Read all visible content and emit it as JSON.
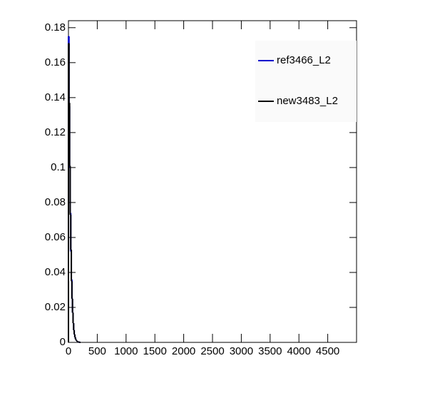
{
  "chart_data": {
    "type": "histogram",
    "bins": [
      0,
      10,
      20,
      30,
      40,
      50,
      60,
      70,
      80,
      90,
      100,
      110,
      120,
      130,
      140,
      150,
      160,
      170,
      180,
      190,
      200,
      210
    ],
    "series": [
      {
        "name": "ref3466_L2",
        "color": "#0000cc",
        "values": [
          0.175,
          0.135,
          0.1,
          0.074,
          0.052,
          0.036,
          0.025,
          0.017,
          0.011,
          0.007,
          0.0045,
          0.003,
          0.002,
          0.0012,
          0.0008,
          0.0005,
          0.0003,
          0.0002,
          0.0001,
          0.0001,
          0
        ]
      },
      {
        "name": "new3483_L2",
        "color": "#000000",
        "values": [
          0.171,
          0.137,
          0.101,
          0.073,
          0.053,
          0.035,
          0.025,
          0.017,
          0.011,
          0.007,
          0.0046,
          0.003,
          0.0019,
          0.0012,
          0.0008,
          0.0005,
          0.0003,
          0.0002,
          0.0001,
          0.0001,
          0
        ]
      }
    ],
    "xlim": [
      0,
      5000
    ],
    "xticks": [
      0,
      500,
      1000,
      1500,
      2000,
      2500,
      3000,
      3500,
      4000,
      4500
    ],
    "ylim": [
      0,
      0.184
    ],
    "yticks": [
      0,
      0.02,
      0.04,
      0.06,
      0.08,
      0.1,
      0.12,
      0.14,
      0.16,
      0.18
    ],
    "legend": "top-right"
  }
}
